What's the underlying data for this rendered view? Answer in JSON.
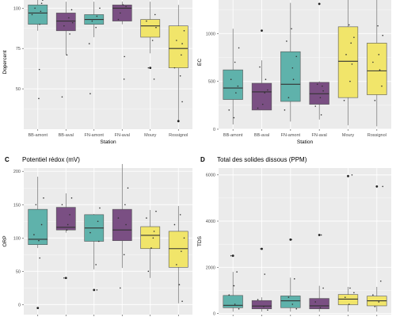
{
  "colors": {
    "teal": "#5fb2ab",
    "purple": "#7a4f83",
    "yellow": "#f1e56a",
    "panel_bg": "#ebebeb",
    "grid": "#ffffff"
  },
  "chart_data": [
    {
      "id": "A",
      "letter": "",
      "title": "",
      "type": "box",
      "xlabel": "Station",
      "ylabel": "Dopercent",
      "categories": [
        "BB-amont",
        "BB-aval",
        "FN-amont",
        "FN-aval",
        "Moury",
        "Rossignol"
      ],
      "fills": [
        "teal",
        "purple",
        "teal",
        "purple",
        "yellow",
        "yellow"
      ],
      "ylim": [
        25,
        108
      ],
      "yticks": [
        50,
        75,
        100
      ],
      "boxes": [
        {
          "whisker_low": 86,
          "q1": 90,
          "median": 97,
          "q3": 102,
          "whisker_high": 107
        },
        {
          "whisker_low": 71,
          "q1": 86,
          "median": 92,
          "q3": 97,
          "whisker_high": 104
        },
        {
          "whisker_low": 82,
          "q1": 90,
          "median": 93,
          "q3": 96,
          "whisker_high": 104
        },
        {
          "whisker_low": 90,
          "q1": 92,
          "median": 100,
          "q3": 102,
          "whisker_high": 104
        },
        {
          "whisker_low": 72,
          "q1": 82,
          "median": 89,
          "q3": 93,
          "whisker_high": 104
        },
        {
          "whisker_low": 30,
          "q1": 63,
          "median": 75,
          "q3": 89,
          "whisker_high": 102
        }
      ],
      "outliers": [
        [],
        [],
        [],
        [],
        [
          [
            0,
            63
          ]
        ],
        [
          [
            0,
            30
          ]
        ]
      ],
      "points": [
        [
          [
            0.05,
            44
          ],
          [
            0.08,
            62
          ],
          [
            0.1,
            90
          ],
          [
            0.2,
            103
          ],
          [
            0.15,
            98
          ],
          [
            -0.15,
            100
          ],
          [
            0.25,
            105
          ],
          [
            -0.3,
            96
          ]
        ],
        [
          [
            -0.2,
            45
          ],
          [
            0.05,
            71
          ],
          [
            -0.1,
            89
          ],
          [
            0.15,
            94
          ],
          [
            0.3,
            99
          ],
          [
            0.35,
            91
          ],
          [
            0.2,
            84
          ]
        ],
        [
          [
            -0.2,
            47
          ],
          [
            -0.25,
            78
          ],
          [
            0.15,
            95
          ],
          [
            0.1,
            88
          ],
          [
            -0.1,
            92
          ],
          [
            0.3,
            100
          ]
        ],
        [
          [
            0.1,
            56
          ],
          [
            0.12,
            70
          ],
          [
            -0.2,
            93
          ],
          [
            0.05,
            102
          ],
          [
            0.2,
            101
          ],
          [
            -0.1,
            97
          ]
        ],
        [
          [
            0.2,
            56
          ],
          [
            -0.1,
            63
          ],
          [
            0.12,
            80
          ],
          [
            0.25,
            96
          ],
          [
            0.3,
            88
          ],
          [
            -0.2,
            92
          ]
        ],
        [
          [
            0.2,
            42
          ],
          [
            0.1,
            58
          ],
          [
            0.15,
            71
          ],
          [
            0.3,
            86
          ],
          [
            -0.1,
            80
          ],
          [
            0.2,
            78
          ],
          [
            -0.2,
            63
          ]
        ]
      ]
    },
    {
      "id": "B",
      "letter": "",
      "title": "",
      "type": "box",
      "xlabel": "Station",
      "ylabel": "EC",
      "categories": [
        "BB-amont",
        "BB-aval",
        "FN-amont",
        "FN-aval",
        "Moury",
        "Rossignol"
      ],
      "fills": [
        "teal",
        "purple",
        "teal",
        "purple",
        "yellow",
        "yellow"
      ],
      "ylim": [
        0,
        1400
      ],
      "yticks": [
        0,
        500,
        1000
      ],
      "boxes": [
        {
          "whisker_low": 50,
          "q1": 310,
          "median": 430,
          "q3": 620,
          "whisker_high": 1050
        },
        {
          "whisker_low": 200,
          "q1": 200,
          "median": 390,
          "q3": 480,
          "whisker_high": 720
        },
        {
          "whisker_low": 80,
          "q1": 290,
          "median": 470,
          "q3": 810,
          "whisker_high": 1320
        },
        {
          "whisker_low": 100,
          "q1": 260,
          "median": 370,
          "q3": 490,
          "whisker_high": 500
        },
        {
          "whisker_low": 40,
          "q1": 330,
          "median": 710,
          "q3": 1070,
          "whisker_high": 1380
        },
        {
          "whisker_low": 30,
          "q1": 360,
          "median": 610,
          "q3": 900,
          "whisker_high": 1390
        }
      ],
      "outliers": [
        [],
        [
          [
            0,
            1030
          ]
        ],
        [],
        [
          [
            0,
            1310
          ]
        ],
        [],
        []
      ],
      "points": [
        [
          [
            -0.2,
            200
          ],
          [
            0.15,
            380
          ],
          [
            0.25,
            450
          ],
          [
            -0.1,
            520
          ],
          [
            0.1,
            700
          ],
          [
            0.3,
            850
          ],
          [
            0.05,
            120
          ]
        ],
        [
          [
            -0.2,
            220
          ],
          [
            0.05,
            260
          ],
          [
            0.15,
            380
          ],
          [
            0.3,
            410
          ],
          [
            0.2,
            520
          ],
          [
            -0.1,
            650
          ]
        ],
        [
          [
            -0.3,
            200
          ],
          [
            -0.1,
            330
          ],
          [
            0.15,
            520
          ],
          [
            0.1,
            640
          ],
          [
            0.3,
            760
          ],
          [
            -0.2,
            920
          ],
          [
            0.05,
            1050
          ]
        ],
        [
          [
            -0.2,
            240
          ],
          [
            0.05,
            330
          ],
          [
            0.2,
            400
          ],
          [
            0.15,
            450
          ],
          [
            -0.1,
            470
          ],
          [
            0.1,
            150
          ]
        ],
        [
          [
            -0.2,
            300
          ],
          [
            0.1,
            500
          ],
          [
            0.2,
            680
          ],
          [
            -0.1,
            780
          ],
          [
            0.15,
            900
          ],
          [
            0.3,
            960
          ],
          [
            0.05,
            1090
          ]
        ],
        [
          [
            -0.1,
            300
          ],
          [
            0.25,
            450
          ],
          [
            0.15,
            620
          ],
          [
            -0.2,
            700
          ],
          [
            0.1,
            780
          ],
          [
            0.3,
            980
          ],
          [
            0.05,
            1080
          ]
        ]
      ]
    },
    {
      "id": "C",
      "letter": "C",
      "title": "Potentiel rédox (mV)",
      "type": "box",
      "xlabel": "",
      "ylabel": "ORP",
      "categories": [
        "BB-amont",
        "BB-aval",
        "FN-amont",
        "FN-aval",
        "Moury",
        "Rossignol"
      ],
      "fills": [
        "teal",
        "purple",
        "teal",
        "purple",
        "yellow",
        "yellow"
      ],
      "ylim": [
        -15,
        205
      ],
      "yticks": [
        0,
        50,
        100,
        150,
        200
      ],
      "boxes": [
        {
          "whisker_low": 85,
          "q1": 90,
          "median": 98,
          "q3": 143,
          "whisker_high": 192
        },
        {
          "whisker_low": 108,
          "q1": 112,
          "median": 116,
          "q3": 146,
          "whisker_high": 167
        },
        {
          "whisker_low": 53,
          "q1": 95,
          "median": 115,
          "q3": 135,
          "whisker_high": 136
        },
        {
          "whisker_low": 55,
          "q1": 96,
          "median": 112,
          "q3": 143,
          "whisker_high": 211
        },
        {
          "whisker_low": 40,
          "q1": 84,
          "median": 104,
          "q3": 117,
          "whisker_high": 142
        },
        {
          "whisker_low": 2,
          "q1": 56,
          "median": 84,
          "q3": 110,
          "whisker_high": 148
        }
      ],
      "outliers": [
        [
          [
            0,
            -5
          ]
        ],
        [
          [
            0,
            40
          ]
        ],
        [
          [
            0,
            22
          ]
        ],
        [],
        [],
        []
      ],
      "points": [
        [
          [
            0.1,
            70
          ],
          [
            0.05,
            96
          ],
          [
            0.2,
            120
          ],
          [
            -0.1,
            150
          ],
          [
            0.3,
            160
          ],
          [
            -0.2,
            105
          ]
        ],
        [
          [
            -0.1,
            40
          ],
          [
            0.1,
            120
          ],
          [
            0.2,
            135
          ],
          [
            -0.2,
            150
          ],
          [
            0.3,
            160
          ],
          [
            0.05,
            112
          ]
        ],
        [
          [
            0.15,
            22
          ],
          [
            0.1,
            60
          ],
          [
            0.25,
            95
          ],
          [
            0.2,
            125
          ],
          [
            -0.2,
            108
          ],
          [
            0.3,
            145
          ]
        ],
        [
          [
            -0.1,
            25
          ],
          [
            0.1,
            75
          ],
          [
            -0.2,
            130
          ],
          [
            0.2,
            120
          ],
          [
            0.15,
            150
          ],
          [
            0.3,
            175
          ]
        ],
        [
          [
            -0.1,
            50
          ],
          [
            0.05,
            85
          ],
          [
            0.15,
            100
          ],
          [
            0.2,
            110
          ],
          [
            -0.2,
            130
          ],
          [
            0.3,
            140
          ]
        ],
        [
          [
            0.2,
            5
          ],
          [
            0.05,
            30
          ],
          [
            -0.1,
            60
          ],
          [
            0.15,
            80
          ],
          [
            0.3,
            100
          ],
          [
            -0.2,
            120
          ],
          [
            0.1,
            135
          ]
        ]
      ]
    },
    {
      "id": "D",
      "letter": "D",
      "title": "Total des solides dissous (PPM)",
      "type": "box",
      "xlabel": "",
      "ylabel": "TDS",
      "categories": [
        "BB-amont",
        "BB-aval",
        "FN-amont",
        "FN-aval",
        "Moury",
        "Rossignol"
      ],
      "fills": [
        "teal",
        "purple",
        "teal",
        "purple",
        "yellow",
        "yellow"
      ],
      "ylim": [
        -50,
        6300
      ],
      "yticks": [
        0,
        2000,
        4000,
        6000
      ],
      "boxes": [
        {
          "whisker_low": 80,
          "q1": 250,
          "median": 350,
          "q3": 780,
          "whisker_high": 1800
        },
        {
          "whisker_low": 80,
          "q1": 200,
          "median": 320,
          "q3": 560,
          "whisker_high": 700
        },
        {
          "whisker_low": 80,
          "q1": 250,
          "median": 550,
          "q3": 760,
          "whisker_high": 1550
        },
        {
          "whisker_low": 80,
          "q1": 200,
          "median": 330,
          "q3": 650,
          "whisker_high": 1200
        },
        {
          "whisker_low": 80,
          "q1": 380,
          "median": 620,
          "q3": 820,
          "whisker_high": 1150
        },
        {
          "whisker_low": 80,
          "q1": 330,
          "median": 550,
          "q3": 750,
          "whisker_high": 1150
        }
      ],
      "outliers": [
        [
          [
            0,
            2500
          ]
        ],
        [
          [
            0,
            2800
          ]
        ],
        [
          [
            0,
            3200
          ]
        ],
        [
          [
            0,
            3400
          ]
        ],
        [
          [
            0,
            5950
          ]
        ],
        [
          [
            0,
            5500
          ]
        ]
      ],
      "points": [
        [
          [
            -0.1,
            2500
          ],
          [
            0.2,
            1800
          ],
          [
            -0.2,
            800
          ],
          [
            0.1,
            400
          ],
          [
            0.3,
            200
          ],
          [
            0.05,
            1200
          ]
        ],
        [
          [
            -0.05,
            2800
          ],
          [
            0.15,
            1700
          ],
          [
            -0.2,
            600
          ],
          [
            0.1,
            300
          ],
          [
            0.3,
            150
          ]
        ],
        [
          [
            0.05,
            3200
          ],
          [
            0.2,
            1500
          ],
          [
            -0.1,
            700
          ],
          [
            0.1,
            400
          ],
          [
            0.3,
            200
          ]
        ],
        [
          [
            0.1,
            3400
          ],
          [
            0.2,
            1100
          ],
          [
            -0.2,
            500
          ],
          [
            0.05,
            250
          ]
        ],
        [
          [
            0.2,
            6000
          ],
          [
            0.1,
            1100
          ],
          [
            -0.15,
            700
          ],
          [
            0.05,
            400
          ],
          [
            0.3,
            900
          ]
        ],
        [
          [
            0.3,
            5500
          ],
          [
            0.2,
            1400
          ],
          [
            -0.2,
            800
          ],
          [
            0.1,
            500
          ],
          [
            -0.1,
            300
          ]
        ]
      ]
    }
  ]
}
